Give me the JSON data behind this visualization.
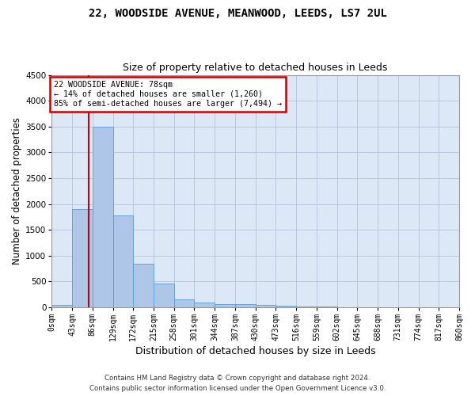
{
  "title_line1": "22, WOODSIDE AVENUE, MEANWOOD, LEEDS, LS7 2UL",
  "title_line2": "Size of property relative to detached houses in Leeds",
  "xlabel": "Distribution of detached houses by size in Leeds",
  "ylabel": "Number of detached properties",
  "bar_edges": [
    0,
    43,
    86,
    129,
    172,
    215,
    258,
    301,
    344,
    387,
    430,
    473,
    516,
    559,
    602,
    645,
    688,
    731,
    774,
    817,
    860
  ],
  "bar_values": [
    50,
    1900,
    3500,
    1780,
    840,
    460,
    155,
    95,
    65,
    55,
    40,
    35,
    20,
    10,
    5,
    3,
    2,
    2,
    1,
    1
  ],
  "bar_color": "#aec6e8",
  "bar_edge_color": "#5b9bd5",
  "property_size": 78,
  "annotation_line1": "22 WOODSIDE AVENUE: 78sqm",
  "annotation_line2": "← 14% of detached houses are smaller (1,260)",
  "annotation_line3": "85% of semi-detached houses are larger (7,494) →",
  "annotation_box_color": "#cc0000",
  "vline_color": "#cc0000",
  "ylim": [
    0,
    4500
  ],
  "footer_line1": "Contains HM Land Registry data © Crown copyright and database right 2024.",
  "footer_line2": "Contains public sector information licensed under the Open Government Licence v3.0.",
  "bg_color": "#dce8f5",
  "grid_color": "#b8c8dc",
  "title_fontsize": 10,
  "subtitle_fontsize": 9,
  "axis_label_fontsize": 8.5,
  "tick_fontsize": 7
}
